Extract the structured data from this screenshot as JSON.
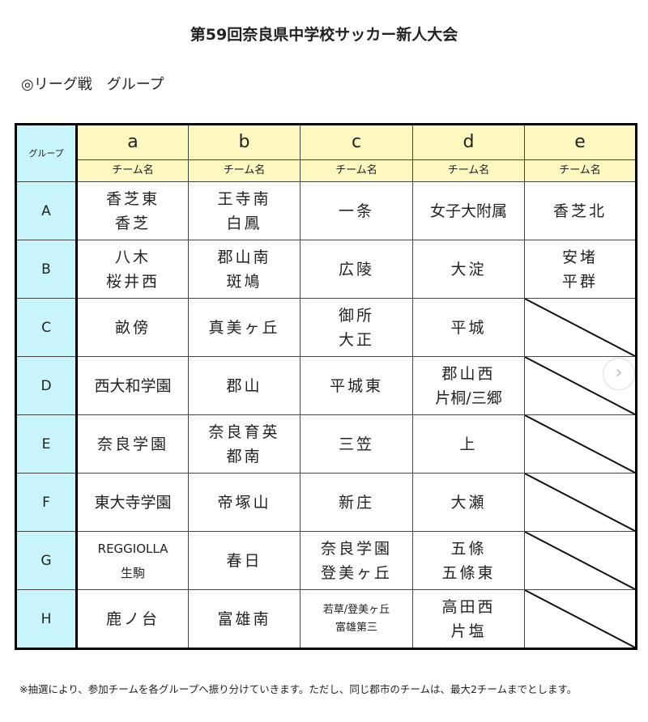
{
  "title": "第59回奈良県中学校サッカー新人大会",
  "subtitle": "◎リーグ戦　グループ",
  "table": {
    "group_header": "グループ",
    "columns": [
      "a",
      "b",
      "c",
      "d",
      "e"
    ],
    "subheader": "チーム名",
    "rows": [
      {
        "group": "A",
        "cells": [
          [
            "香芝東",
            "香芝"
          ],
          [
            "王寺南",
            "白鳳"
          ],
          [
            "一条"
          ],
          [
            "女子大附属"
          ],
          [
            "香芝北"
          ]
        ]
      },
      {
        "group": "B",
        "cells": [
          [
            "八木",
            "桜井西"
          ],
          [
            "郡山南",
            "斑鳩"
          ],
          [
            "広陵"
          ],
          [
            "大淀"
          ],
          [
            "安堵",
            "平群"
          ]
        ]
      },
      {
        "group": "C",
        "cells": [
          [
            "畝傍"
          ],
          [
            "真美ヶ丘"
          ],
          [
            "御所",
            "大正"
          ],
          [
            "平城"
          ],
          null
        ]
      },
      {
        "group": "D",
        "cells": [
          [
            "西大和学園"
          ],
          [
            "郡山"
          ],
          [
            "平城東"
          ],
          [
            "郡山西",
            "片桐/三郷"
          ],
          null
        ]
      },
      {
        "group": "E",
        "cells": [
          [
            "奈良学園"
          ],
          [
            "奈良育英",
            "都南"
          ],
          [
            "三笠"
          ],
          [
            "上"
          ],
          null
        ]
      },
      {
        "group": "F",
        "cells": [
          [
            "東大寺学園"
          ],
          [
            "帝塚山"
          ],
          [
            "新庄"
          ],
          [
            "大瀬"
          ],
          null
        ]
      },
      {
        "group": "G",
        "cells": [
          [
            "REGGIOLLA",
            "生駒"
          ],
          [
            "春日"
          ],
          [
            "奈良学園",
            "登美ヶ丘"
          ],
          [
            "五條",
            "五條東"
          ],
          null
        ]
      },
      {
        "group": "H",
        "cells": [
          [
            "鹿ノ台"
          ],
          [
            "富雄南"
          ],
          [
            "若草/登美ヶ丘",
            "富雄第三"
          ],
          [
            "高田西",
            "片塩"
          ],
          null
        ]
      }
    ]
  },
  "note": "※抽選により、参加チームを各グループへ振り分けていきます。ただし、同じ郡市のチームは、最大2チームまでとします。",
  "next_button_icon": "chevron-right-icon"
}
